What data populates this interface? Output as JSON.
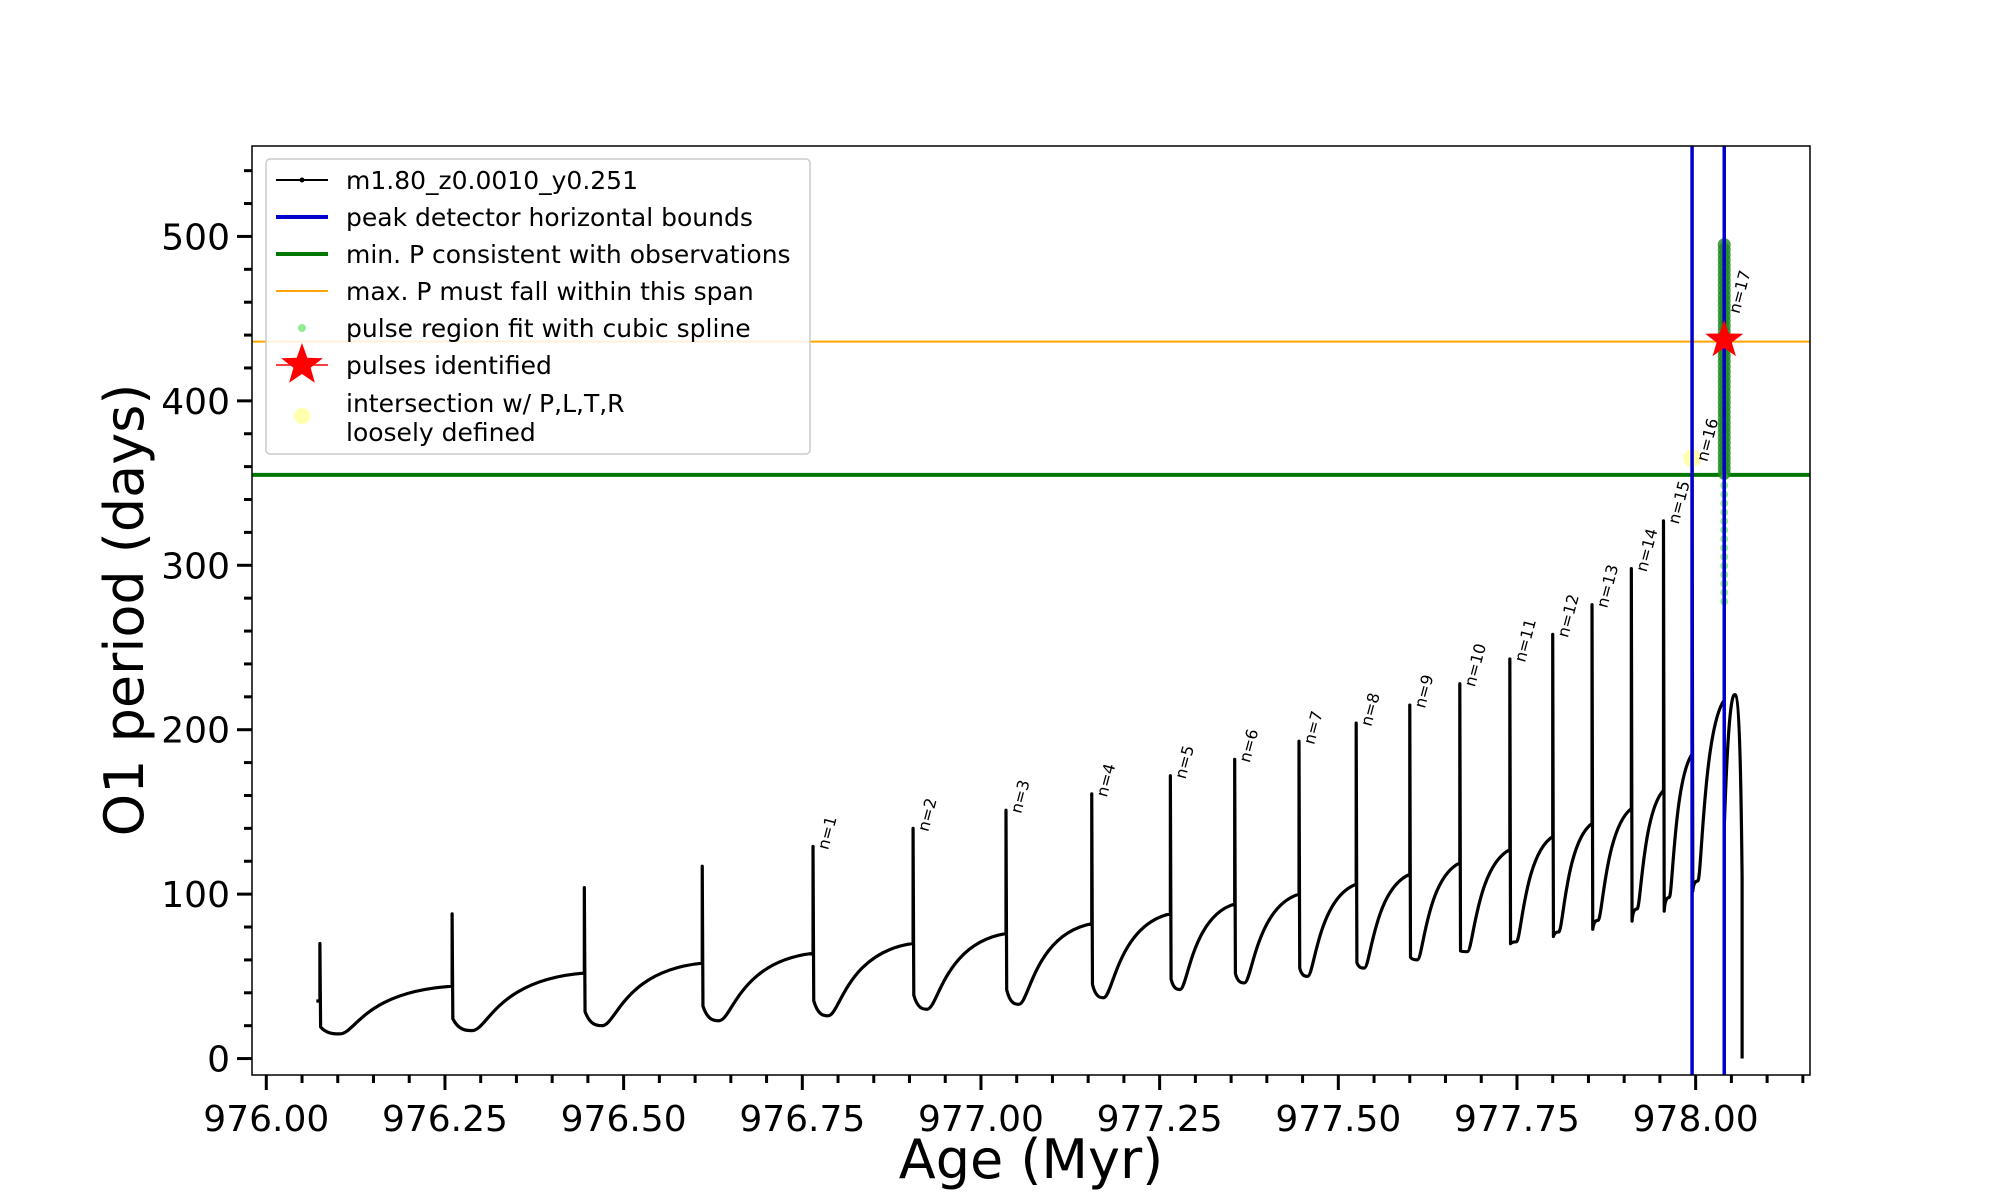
{
  "chart_data": {
    "type": "line",
    "title": "",
    "xlabel": "Age (Myr)",
    "ylabel": "O1 period (days)",
    "xlim": [
      975.98,
      978.16
    ],
    "ylim": [
      -10,
      555
    ],
    "grid": false,
    "legend_position": "top-left",
    "x_ticks": [
      976.0,
      976.25,
      976.5,
      976.75,
      977.0,
      977.25,
      977.5,
      977.75,
      978.0
    ],
    "x_tick_labels": [
      "976.00",
      "976.25",
      "976.50",
      "976.75",
      "977.00",
      "977.25",
      "977.50",
      "977.75",
      "978.00"
    ],
    "y_ticks": [
      0,
      100,
      200,
      300,
      400,
      500
    ],
    "y_tick_labels": [
      "0",
      "100",
      "200",
      "300",
      "400",
      "500"
    ],
    "legend": [
      {
        "label": "m1.80_z0.0010_y0.251",
        "kind": "line-dot",
        "color": "#000000"
      },
      {
        "label": "peak detector horizontal bounds",
        "kind": "line",
        "color": "#0000cc"
      },
      {
        "label": "min. P consistent with observations",
        "kind": "line",
        "color": "#007700"
      },
      {
        "label": "max. P must fall within this span",
        "kind": "thin-line",
        "color": "#ffa500"
      },
      {
        "label": "pulse region fit with cubic spline",
        "kind": "dot",
        "color": "#90ee90"
      },
      {
        "label": "pulses identified",
        "kind": "star",
        "color": "#ff0000"
      },
      {
        "label": "intersection w/ P,L,T,R",
        "label2": "loosely defined",
        "kind": "circle",
        "color": "#ffff99"
      }
    ],
    "series_main": {
      "name": "m1.80_z0.0010_y0.251",
      "color": "#000000",
      "start": [
        976.07,
        35
      ],
      "end_drop": [
        978.065,
        0
      ],
      "pulses": [
        {
          "x": 976.075,
          "pre": 35,
          "peak": 70,
          "min": 15,
          "end": 44
        },
        {
          "x": 976.26,
          "pre": 44,
          "peak": 88,
          "min": 17,
          "end": 52
        },
        {
          "x": 976.445,
          "pre": 52,
          "peak": 104,
          "min": 20,
          "end": 58
        },
        {
          "x": 976.61,
          "pre": 58,
          "peak": 117,
          "min": 23,
          "end": 64
        },
        {
          "x": 976.765,
          "pre": 64,
          "peak": 129,
          "min": 26,
          "end": 70
        },
        {
          "x": 976.905,
          "pre": 70,
          "peak": 140,
          "min": 30,
          "end": 76
        },
        {
          "x": 977.035,
          "pre": 76,
          "peak": 151,
          "min": 33,
          "end": 82
        },
        {
          "x": 977.155,
          "pre": 82,
          "peak": 161,
          "min": 37,
          "end": 88
        },
        {
          "x": 977.265,
          "pre": 88,
          "peak": 172,
          "min": 42,
          "end": 94
        },
        {
          "x": 977.355,
          "pre": 94,
          "peak": 182,
          "min": 46,
          "end": 100
        },
        {
          "x": 977.445,
          "pre": 100,
          "peak": 193,
          "min": 50,
          "end": 106
        },
        {
          "x": 977.525,
          "pre": 106,
          "peak": 204,
          "min": 55,
          "end": 112
        },
        {
          "x": 977.6,
          "pre": 112,
          "peak": 215,
          "min": 60,
          "end": 119
        },
        {
          "x": 977.67,
          "pre": 119,
          "peak": 228,
          "min": 65,
          "end": 127
        },
        {
          "x": 977.74,
          "pre": 127,
          "peak": 243,
          "min": 71,
          "end": 135
        },
        {
          "x": 977.8,
          "pre": 135,
          "peak": 258,
          "min": 77,
          "end": 143
        },
        {
          "x": 977.855,
          "pre": 143,
          "peak": 276,
          "min": 84,
          "end": 152
        },
        {
          "x": 977.91,
          "pre": 152,
          "peak": 298,
          "min": 91,
          "end": 163
        },
        {
          "x": 977.955,
          "pre": 163,
          "peak": 327,
          "min": 98,
          "end": 185
        },
        {
          "x": 977.995,
          "pre": 185,
          "peak": 365,
          "min": 108,
          "end": 218
        },
        {
          "x": 978.04,
          "pre": 218,
          "peak": 495,
          "min": 140,
          "end": 219
        }
      ]
    },
    "pulse_labels": [
      {
        "x": 976.765,
        "y": 129,
        "text": "n=1"
      },
      {
        "x": 976.905,
        "y": 140,
        "text": "n=2"
      },
      {
        "x": 977.035,
        "y": 151,
        "text": "n=3"
      },
      {
        "x": 977.155,
        "y": 161,
        "text": "n=4"
      },
      {
        "x": 977.265,
        "y": 172,
        "text": "n=5"
      },
      {
        "x": 977.355,
        "y": 182,
        "text": "n=6"
      },
      {
        "x": 977.445,
        "y": 193,
        "text": "n=7"
      },
      {
        "x": 977.525,
        "y": 204,
        "text": "n=8"
      },
      {
        "x": 977.6,
        "y": 215,
        "text": "n=9"
      },
      {
        "x": 977.67,
        "y": 228,
        "text": "n=10"
      },
      {
        "x": 977.74,
        "y": 243,
        "text": "n=11"
      },
      {
        "x": 977.8,
        "y": 258,
        "text": "n=12"
      },
      {
        "x": 977.855,
        "y": 276,
        "text": "n=13"
      },
      {
        "x": 977.91,
        "y": 298,
        "text": "n=14"
      },
      {
        "x": 977.955,
        "y": 327,
        "text": "n=15"
      },
      {
        "x": 977.995,
        "y": 365,
        "text": "n=16"
      },
      {
        "x": 978.04,
        "y": 455,
        "text": "n=17"
      }
    ],
    "vertical_bounds": {
      "color": "#0000cc",
      "x": [
        977.995,
        978.04
      ]
    },
    "min_period_line": {
      "color": "#007700",
      "y": 355
    },
    "max_period_line": {
      "color": "#ffa500",
      "y": 436
    },
    "spline_fit": {
      "color": "#90ee90",
      "x": 978.04,
      "y_range": [
        278,
        495
      ]
    },
    "spline_fit_dense": {
      "color": "#228b22",
      "x": 978.04,
      "y_range": [
        356,
        495
      ]
    },
    "pulse_identified": {
      "x": 978.04,
      "y": 437,
      "color": "#ff0000"
    },
    "intersection": {
      "x": 977.995,
      "y": 365,
      "color": "#ffff99"
    }
  }
}
